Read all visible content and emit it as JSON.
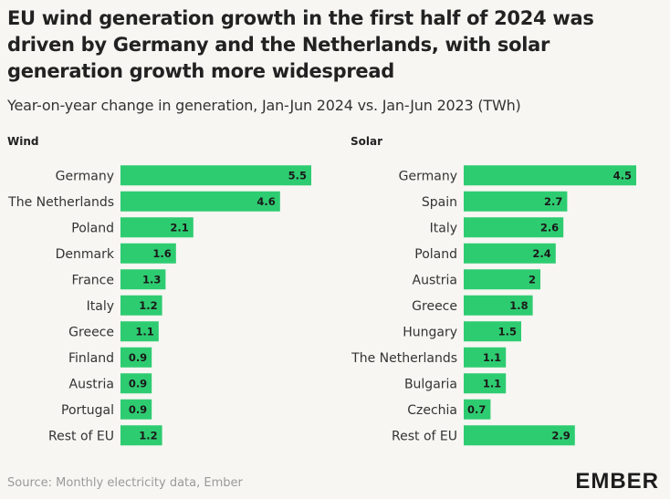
{
  "title": "EU wind generation growth in the first half of 2024 was driven by Germany and the Netherlands, with solar generation growth more widespread",
  "subtitle": "Year-on-year change in generation, Jan-Jun 2024 vs. Jan-Jun 2023 (TWh)",
  "source": "Source: Monthly electricity data, Ember",
  "logo": "EMBER",
  "colors": {
    "bar": "#2ecc71",
    "background": "#f7f6f2"
  },
  "chart_data": [
    {
      "type": "bar",
      "orientation": "horizontal",
      "title": "Wind",
      "categories": [
        "Germany",
        "The Netherlands",
        "Poland",
        "Denmark",
        "France",
        "Italy",
        "Greece",
        "Finland",
        "Austria",
        "Portugal",
        "Rest of EU"
      ],
      "values": [
        5.5,
        4.6,
        2.1,
        1.6,
        1.3,
        1.2,
        1.1,
        0.9,
        0.9,
        0.9,
        1.2
      ],
      "xlim": [
        0,
        5.5
      ],
      "grid": false
    },
    {
      "type": "bar",
      "orientation": "horizontal",
      "title": "Solar",
      "categories": [
        "Germany",
        "Spain",
        "Italy",
        "Poland",
        "Austria",
        "Greece",
        "Hungary",
        "The Netherlands",
        "Bulgaria",
        "Czechia",
        "Rest of EU"
      ],
      "values": [
        4.5,
        2.7,
        2.6,
        2.4,
        2,
        1.8,
        1.5,
        1.1,
        1.1,
        0.7,
        2.9
      ],
      "xlim": [
        0,
        4.5
      ],
      "grid": false
    }
  ]
}
